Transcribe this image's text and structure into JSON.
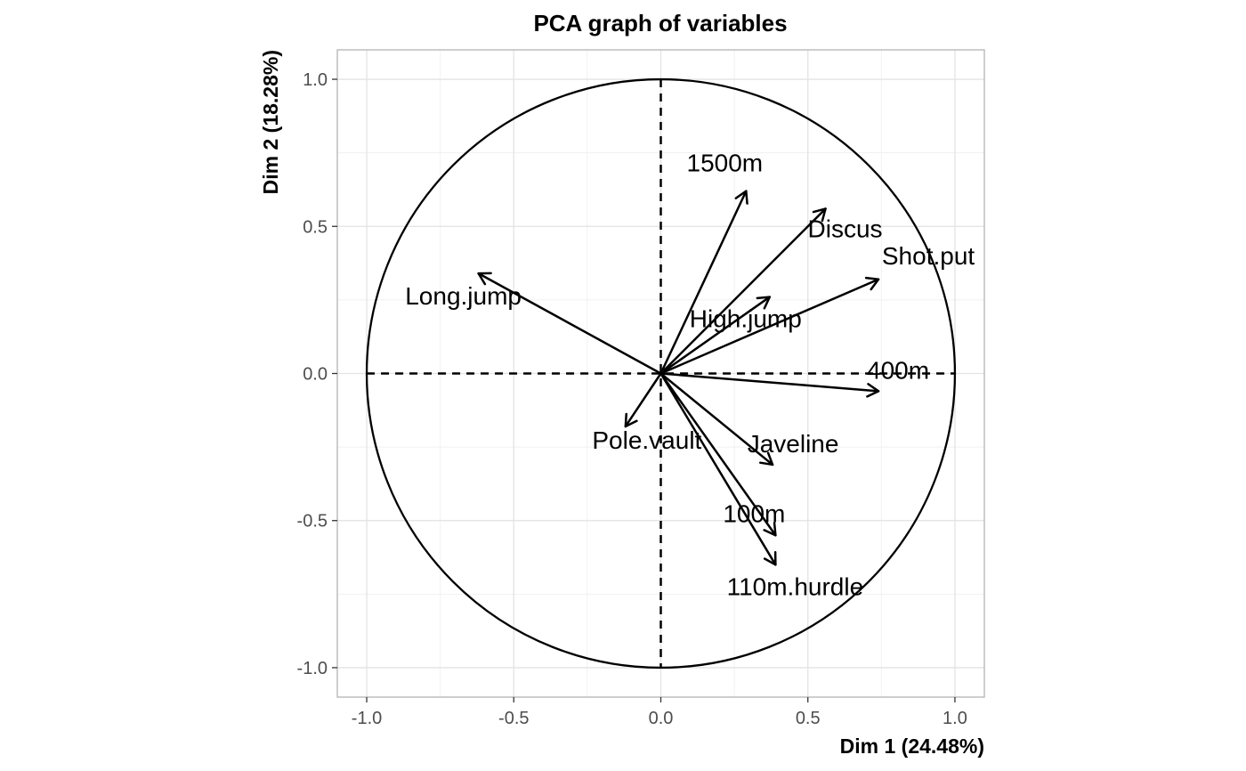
{
  "chart_data": {
    "type": "scatter",
    "subtype": "pca-correlation-circle",
    "title": "PCA graph of variables",
    "xlabel": "Dim 1 (24.48%)",
    "ylabel": "Dim 2 (18.28%)",
    "xlim": [
      -1.1,
      1.1
    ],
    "ylim": [
      -1.1,
      1.1
    ],
    "xticks": [
      -1.0,
      -0.5,
      0.0,
      0.5,
      1.0
    ],
    "yticks": [
      -1.0,
      -0.5,
      0.0,
      0.5,
      1.0
    ],
    "xtick_labels": [
      "-1.0",
      "-0.5",
      "0.0",
      "0.5",
      "1.0"
    ],
    "ytick_labels": [
      "-1.0",
      "-0.5",
      "0.0",
      "0.5",
      "1.0"
    ],
    "grid": true,
    "unit_circle": true,
    "variables": [
      {
        "name": "1500m",
        "x": 0.29,
        "y": 0.62
      },
      {
        "name": "Discus",
        "x": 0.56,
        "y": 0.56
      },
      {
        "name": "Shot.put",
        "x": 0.74,
        "y": 0.32
      },
      {
        "name": "Long.jump",
        "x": -0.62,
        "y": 0.34
      },
      {
        "name": "High.jump",
        "x": 0.37,
        "y": 0.26
      },
      {
        "name": "400m",
        "x": 0.74,
        "y": -0.06
      },
      {
        "name": "Pole.vault",
        "x": -0.12,
        "y": -0.18
      },
      {
        "name": "Javeline",
        "x": 0.38,
        "y": -0.31
      },
      {
        "name": "100m",
        "x": 0.39,
        "y": -0.55
      },
      {
        "name": "110m.hurdle",
        "x": 0.39,
        "y": -0.65
      }
    ]
  }
}
